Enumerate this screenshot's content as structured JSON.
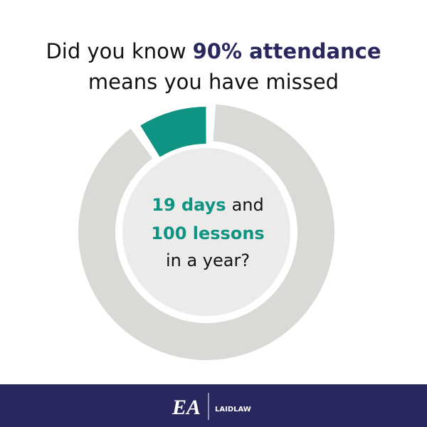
{
  "chart_data": {
    "type": "donut",
    "title_parts": [
      "Did you know",
      "90% attendance",
      "means you have missed"
    ],
    "values": [
      10,
      90
    ],
    "colors": [
      "#0f9382",
      "#d9dad6"
    ],
    "center_text": {
      "highlight_1": "19 days",
      "rest_1": "and",
      "highlight_2": "100 lessons",
      "line_3": "in a year?"
    },
    "footer": {
      "logo": "EA",
      "partner": "LAIDLAW"
    }
  }
}
